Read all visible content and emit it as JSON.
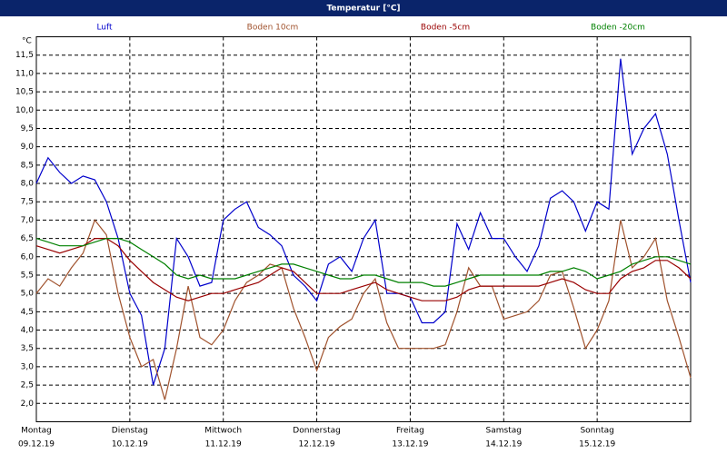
{
  "chart_data": {
    "type": "line",
    "title": "Temperatur [°C]",
    "y_unit": "°C",
    "x": [
      0,
      0.125,
      0.25,
      0.375,
      0.5,
      0.625,
      0.75,
      0.875,
      1,
      1.125,
      1.25,
      1.375,
      1.5,
      1.625,
      1.75,
      1.875,
      2,
      2.125,
      2.25,
      2.375,
      2.5,
      2.625,
      2.75,
      2.875,
      3,
      3.125,
      3.25,
      3.375,
      3.5,
      3.625,
      3.75,
      3.875,
      4,
      4.125,
      4.25,
      4.375,
      4.5,
      4.625,
      4.75,
      4.875,
      5,
      5.125,
      5.25,
      5.375,
      5.5,
      5.625,
      5.75,
      5.875,
      6,
      6.125,
      6.25,
      6.375,
      6.5,
      6.625,
      6.75,
      6.875,
      7
    ],
    "xlim": [
      0,
      7
    ],
    "xticks": [
      {
        "value": 0,
        "label": "Montag"
      },
      {
        "value": 1,
        "label": "Dienstag"
      },
      {
        "value": 2,
        "label": "Mittwoch"
      },
      {
        "value": 3,
        "label": "Donnerstag"
      },
      {
        "value": 4,
        "label": "Freitag"
      },
      {
        "value": 5,
        "label": "Samstag"
      },
      {
        "value": 6,
        "label": "Sonntag"
      }
    ],
    "xtick_dates": [
      "09.12.19",
      "10.12.19",
      "11.12.19",
      "12.12.19",
      "13.12.19",
      "14.12.19",
      "15.12.19"
    ],
    "ylim": [
      1.5,
      12.0
    ],
    "yticks": [
      {
        "value": 2.0,
        "label": "2,0"
      },
      {
        "value": 2.5,
        "label": "2,5"
      },
      {
        "value": 3.0,
        "label": "3,0"
      },
      {
        "value": 3.5,
        "label": "3,5"
      },
      {
        "value": 4.0,
        "label": "4,0"
      },
      {
        "value": 4.5,
        "label": "4,5"
      },
      {
        "value": 5.0,
        "label": "5,0"
      },
      {
        "value": 5.5,
        "label": "5,5"
      },
      {
        "value": 6.0,
        "label": "6,0"
      },
      {
        "value": 6.5,
        "label": "6,5"
      },
      {
        "value": 7.0,
        "label": "7,0"
      },
      {
        "value": 7.5,
        "label": "7,5"
      },
      {
        "value": 8.0,
        "label": "8,0"
      },
      {
        "value": 8.5,
        "label": "8,5"
      },
      {
        "value": 9.0,
        "label": "9,0"
      },
      {
        "value": 9.5,
        "label": "9,5"
      },
      {
        "value": 10.0,
        "label": "10,0"
      },
      {
        "value": 10.5,
        "label": "10,5"
      },
      {
        "value": 11.0,
        "label": "11,0"
      },
      {
        "value": 11.5,
        "label": "11,5"
      }
    ],
    "grid": true,
    "series": [
      {
        "name": "Luft",
        "color": "#0000cc",
        "values": [
          8.0,
          8.7,
          8.3,
          8.0,
          8.2,
          8.1,
          7.5,
          6.5,
          5.0,
          4.4,
          2.5,
          3.5,
          6.5,
          6.0,
          5.2,
          5.3,
          7.0,
          7.3,
          7.5,
          6.8,
          6.6,
          6.3,
          5.5,
          5.2,
          4.8,
          5.8,
          6.0,
          5.6,
          6.5,
          7.0,
          5.0,
          5.0,
          4.9,
          4.2,
          4.2,
          4.5,
          6.9,
          6.2,
          7.2,
          6.5,
          6.5,
          6.0,
          5.6,
          6.3,
          7.6,
          7.8,
          7.5,
          6.7,
          7.5,
          7.3,
          11.4,
          8.8,
          9.5,
          9.9,
          8.8,
          7.0,
          5.3
        ]
      },
      {
        "name": "Boden 10cm",
        "color": "#a0522d",
        "values": [
          5.0,
          5.4,
          5.2,
          5.7,
          6.1,
          7.0,
          6.6,
          5.0,
          3.8,
          3.0,
          3.2,
          2.1,
          3.5,
          5.2,
          3.8,
          3.6,
          4.0,
          4.8,
          5.3,
          5.5,
          5.8,
          5.7,
          4.6,
          3.8,
          2.9,
          3.8,
          4.1,
          4.3,
          5.0,
          5.4,
          4.2,
          3.5,
          3.5,
          3.5,
          3.5,
          3.6,
          4.5,
          5.7,
          5.2,
          5.2,
          4.3,
          4.4,
          4.5,
          4.8,
          5.5,
          5.6,
          4.6,
          3.5,
          4.0,
          4.8,
          7.0,
          5.7,
          6.0,
          6.5,
          4.8,
          3.8,
          2.7
        ]
      },
      {
        "name": "Boden -5cm",
        "color": "#990000",
        "values": [
          6.3,
          6.2,
          6.1,
          6.2,
          6.3,
          6.5,
          6.5,
          6.3,
          5.9,
          5.6,
          5.3,
          5.1,
          4.9,
          4.8,
          4.9,
          5.0,
          5.0,
          5.1,
          5.2,
          5.3,
          5.5,
          5.7,
          5.6,
          5.3,
          5.0,
          5.0,
          5.0,
          5.1,
          5.2,
          5.3,
          5.1,
          5.0,
          4.9,
          4.8,
          4.8,
          4.8,
          4.9,
          5.1,
          5.2,
          5.2,
          5.2,
          5.2,
          5.2,
          5.2,
          5.3,
          5.4,
          5.3,
          5.1,
          5.0,
          5.0,
          5.4,
          5.6,
          5.7,
          5.9,
          5.9,
          5.7,
          5.4
        ]
      },
      {
        "name": "Boden -20cm",
        "color": "#008000",
        "values": [
          6.5,
          6.4,
          6.3,
          6.3,
          6.3,
          6.4,
          6.5,
          6.5,
          6.4,
          6.2,
          6.0,
          5.8,
          5.5,
          5.4,
          5.5,
          5.4,
          5.4,
          5.4,
          5.5,
          5.6,
          5.7,
          5.8,
          5.8,
          5.7,
          5.6,
          5.5,
          5.4,
          5.4,
          5.5,
          5.5,
          5.4,
          5.3,
          5.3,
          5.3,
          5.2,
          5.2,
          5.3,
          5.4,
          5.5,
          5.5,
          5.5,
          5.5,
          5.5,
          5.5,
          5.6,
          5.6,
          5.7,
          5.6,
          5.4,
          5.5,
          5.6,
          5.8,
          5.9,
          6.0,
          6.0,
          5.9,
          5.8
        ]
      }
    ]
  }
}
